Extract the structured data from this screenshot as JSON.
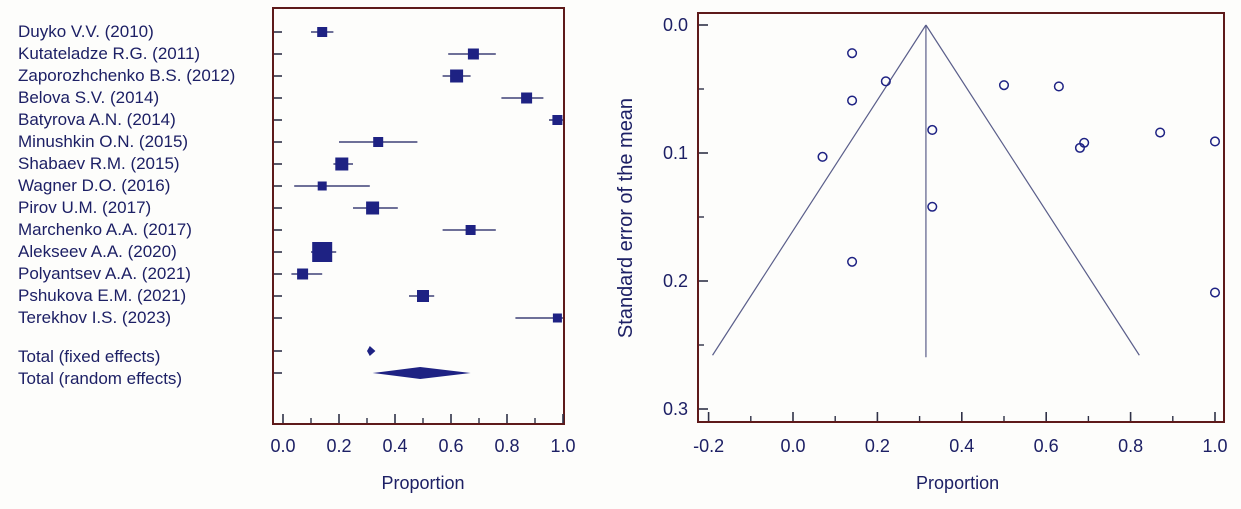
{
  "colors": {
    "marker": "#1e2283",
    "ci_line": "#3f4277",
    "funnel_line": "#5a5e8a",
    "panel_border": "#5e1a1a",
    "tick": "#2f3147",
    "text": "#1d2065"
  },
  "chart_data": [
    {
      "type": "forest",
      "xlabel": "Proportion",
      "xlim": [
        0.0,
        1.0
      ],
      "x_axis": {
        "label": "Proportion",
        "ticks": [
          {
            "v": 0.0,
            "t": "0.0"
          },
          {
            "v": 0.2,
            "t": "0.2"
          },
          {
            "v": 0.4,
            "t": "0.4"
          },
          {
            "v": 0.6,
            "t": "0.6"
          },
          {
            "v": 0.8,
            "t": "0.8"
          },
          {
            "v": 1.0,
            "t": "1.0"
          }
        ],
        "minor": [
          0.1,
          0.3,
          0.5,
          0.7,
          0.9
        ]
      },
      "studies": [
        {
          "label": "Duyko V.V. (2010)",
          "proportion": 0.14,
          "ci_low": 0.1,
          "ci_high": 0.18,
          "size": 10
        },
        {
          "label": "Kutateladze R.G. (2011)",
          "proportion": 0.68,
          "ci_low": 0.59,
          "ci_high": 0.76,
          "size": 11
        },
        {
          "label": "Zaporozhchenko B.S. (2012)",
          "proportion": 0.62,
          "ci_low": 0.57,
          "ci_high": 0.67,
          "size": 13
        },
        {
          "label": "Belova S.V. (2014)",
          "proportion": 0.87,
          "ci_low": 0.78,
          "ci_high": 0.93,
          "size": 11
        },
        {
          "label": "Batyrova A.N. (2014)",
          "proportion": 0.98,
          "ci_low": 0.95,
          "ci_high": 1.0,
          "size": 10
        },
        {
          "label": "Minushkin O.N. (2015)",
          "proportion": 0.34,
          "ci_low": 0.2,
          "ci_high": 0.48,
          "size": 10
        },
        {
          "label": "Shabaev R.M. (2015)",
          "proportion": 0.21,
          "ci_low": 0.18,
          "ci_high": 0.25,
          "size": 13
        },
        {
          "label": "Wagner D.O. (2016)",
          "proportion": 0.14,
          "ci_low": 0.04,
          "ci_high": 0.31,
          "size": 9
        },
        {
          "label": "Pirov U.M. (2017)",
          "proportion": 0.32,
          "ci_low": 0.25,
          "ci_high": 0.41,
          "size": 13
        },
        {
          "label": "Marchenko A.A. (2017)",
          "proportion": 0.67,
          "ci_low": 0.57,
          "ci_high": 0.76,
          "size": 10
        },
        {
          "label": "Alekseev A.A. (2020)",
          "proportion": 0.14,
          "ci_low": 0.1,
          "ci_high": 0.19,
          "size": 20
        },
        {
          "label": "Polyantsev A.A. (2021)",
          "proportion": 0.07,
          "ci_low": 0.03,
          "ci_high": 0.14,
          "size": 11
        },
        {
          "label": "Pshukova E.M. (2021)",
          "proportion": 0.5,
          "ci_low": 0.45,
          "ci_high": 0.54,
          "size": 12
        },
        {
          "label": "Terekhov I.S. (2023)",
          "proportion": 0.98,
          "ci_low": 0.83,
          "ci_high": 1.0,
          "size": 9
        }
      ],
      "totals": [
        {
          "label": "Total (fixed effects)",
          "proportion": 0.31,
          "ci_low": 0.3,
          "ci_high": 0.33,
          "half_height": 5
        },
        {
          "label": "Total (random effects)",
          "proportion": 0.49,
          "ci_low": 0.32,
          "ci_high": 0.67,
          "half_height": 6
        }
      ]
    },
    {
      "type": "funnel",
      "xlabel": "Proportion",
      "ylabel": "Standard error of the mean",
      "xlim": [
        -0.21,
        1.01
      ],
      "ylim": [
        0.0,
        0.31
      ],
      "x_axis": {
        "label": "Proportion",
        "ticks": [
          {
            "v": -0.2,
            "t": "-0.2"
          },
          {
            "v": 0.0,
            "t": "0.0"
          },
          {
            "v": 0.2,
            "t": "0.2"
          },
          {
            "v": 0.4,
            "t": "0.4"
          },
          {
            "v": 0.6,
            "t": "0.6"
          },
          {
            "v": 0.8,
            "t": "0.8"
          },
          {
            "v": 1.0,
            "t": "1.0"
          }
        ],
        "minor": [
          -0.1,
          0.1,
          0.3,
          0.5,
          0.7,
          0.9
        ]
      },
      "y_axis": {
        "label": "Standard error of the mean",
        "ticks": [
          {
            "v": 0.0,
            "t": "0.0"
          },
          {
            "v": 0.1,
            "t": "0.1"
          },
          {
            "v": 0.2,
            "t": "0.2"
          },
          {
            "v": 0.3,
            "t": "0.3"
          }
        ],
        "minor": [
          0.05,
          0.15,
          0.25
        ]
      },
      "funnel": {
        "apex_x": 0.315,
        "base_se": 0.258
      },
      "points": [
        {
          "x": 0.14,
          "se": 0.022
        },
        {
          "x": 0.22,
          "se": 0.044
        },
        {
          "x": 0.14,
          "se": 0.059
        },
        {
          "x": 0.33,
          "se": 0.082
        },
        {
          "x": 0.07,
          "se": 0.103
        },
        {
          "x": 0.33,
          "se": 0.142
        },
        {
          "x": 0.14,
          "se": 0.185
        },
        {
          "x": 0.5,
          "se": 0.047
        },
        {
          "x": 0.63,
          "se": 0.048
        },
        {
          "x": 0.68,
          "se": 0.096
        },
        {
          "x": 0.69,
          "se": 0.092
        },
        {
          "x": 0.87,
          "se": 0.084
        },
        {
          "x": 1.0,
          "se": 0.091
        },
        {
          "x": 1.0,
          "se": 0.209
        }
      ]
    }
  ]
}
